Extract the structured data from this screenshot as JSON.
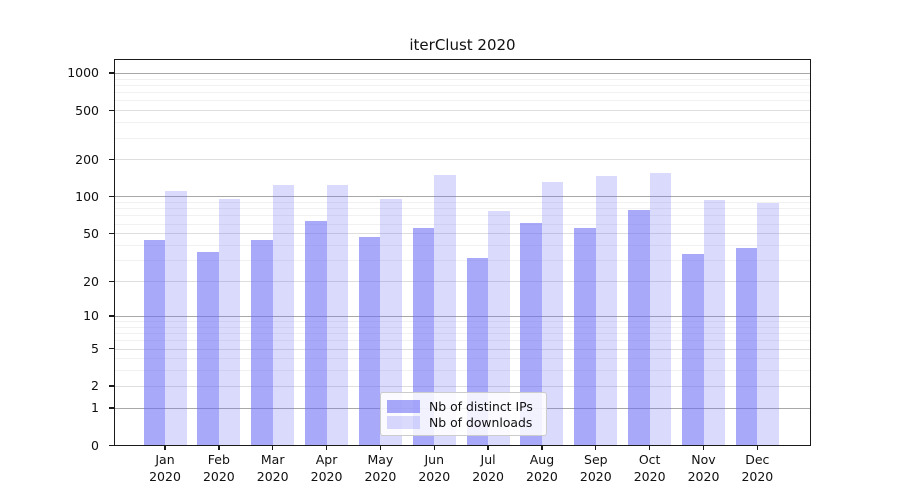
{
  "chart_data": {
    "type": "bar",
    "title": "iterClust 2020",
    "categories": [
      "Jan",
      "Feb",
      "Mar",
      "Apr",
      "May",
      "Jun",
      "Jul",
      "Aug",
      "Sep",
      "Oct",
      "Nov",
      "Dec"
    ],
    "year_label": "2020",
    "series": [
      {
        "name": "Nb of distinct IPs",
        "color": "rgba(106,106,246,0.58)",
        "values": [
          44,
          35,
          44,
          63,
          47,
          55,
          31,
          61,
          55,
          77,
          34,
          38
        ]
      },
      {
        "name": "Nb of downloads",
        "color": "rgba(106,106,246,0.25)",
        "values": [
          110,
          96,
          125,
          123,
          96,
          149,
          76,
          130,
          147,
          155,
          93,
          89
        ]
      }
    ],
    "yscale": "log1p",
    "yticks": [
      0,
      1,
      2,
      5,
      10,
      20,
      50,
      100,
      200,
      500,
      1000
    ],
    "minor_yticks": [
      3,
      4,
      6,
      7,
      8,
      9,
      30,
      40,
      60,
      70,
      80,
      90,
      300,
      400,
      600,
      700,
      800,
      900
    ],
    "ylim": [
      0,
      1285
    ],
    "grid": true,
    "legend_position": "lower center"
  },
  "style": {
    "bar_base_color": "#6a6af6",
    "grid_major_color": "#a8a8a8",
    "grid_mid_color": "#dedede",
    "grid_minor_color": "#f1f1f1",
    "spine_color": "#1a1a1a",
    "background_color": "#ffffff"
  }
}
